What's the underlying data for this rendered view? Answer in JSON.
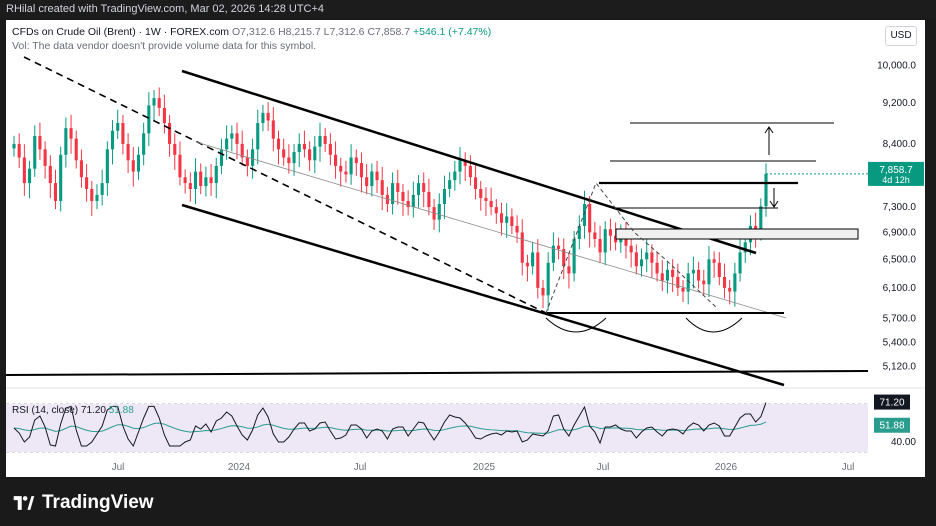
{
  "header": {
    "attribution": "RHilal created with TradingView.com, Mar 02, 2026 14:28 UTC+4"
  },
  "legend": {
    "symbol": "CFDs on Crude Oil (Brent) · 1W · FOREX.com",
    "open": "O7,312.6",
    "high": "H8,215.7",
    "low": "L7,312.6",
    "close": "C7,858.7",
    "change": "+546.1 (+7.47%)",
    "vol_note": "Vol: The data vendor doesn't provide volume data for this symbol."
  },
  "currency": "USD",
  "rsi": {
    "label": "RSI (14, close)",
    "value": "71.20",
    "ma_value": "51.88"
  },
  "last_price": {
    "price": "7,858.7",
    "countdown": "4d 12h"
  },
  "footer": {
    "brand": "TradingView"
  },
  "colors": {
    "up": "#089981",
    "down": "#f23645",
    "rsi_line": "#131722",
    "rsi_ma": "#2a9d8f",
    "rsi_band": "#ede7f6"
  },
  "chart_data": {
    "type": "candlestick",
    "price_axis_ticks": [
      "10,000.0",
      "9,200.0",
      "8,400.0",
      "7,300.0",
      "6,900.0",
      "6,500.0",
      "6,100.0",
      "5,700.0",
      "5,400.0",
      "5,120.0"
    ],
    "time_axis_ticks": [
      "Jul",
      "2024",
      "Jul",
      "2025",
      "Jul",
      "2026",
      "Jul"
    ],
    "rsi_axis_ticks": [
      "40.00"
    ],
    "scale": "log",
    "close_series": [
      8400,
      8150,
      7700,
      7950,
      8550,
      8300,
      8000,
      7700,
      7400,
      8200,
      8700,
      8500,
      8100,
      7800,
      7600,
      7400,
      7500,
      7700,
      8300,
      8650,
      8800,
      8400,
      8100,
      7900,
      8200,
      8600,
      9150,
      9300,
      9100,
      8800,
      8400,
      8200,
      7800,
      7700,
      7600,
      7900,
      7650,
      7800,
      7700,
      8000,
      8300,
      8500,
      8600,
      8400,
      8150,
      8000,
      8300,
      8800,
      9000,
      8850,
      8500,
      8300,
      8150,
      8050,
      8250,
      8400,
      8300,
      8100,
      8350,
      8550,
      8400,
      8200,
      8000,
      7900,
      7850,
      8150,
      8050,
      7800,
      7650,
      7900,
      7750,
      7500,
      7350,
      7700,
      7550,
      7400,
      7300,
      7500,
      7700,
      7550,
      7300,
      7100,
      7350,
      7600,
      7750,
      7900,
      8100,
      8000,
      7800,
      7600,
      7450,
      7400,
      7300,
      7200,
      7050,
      7150,
      7000,
      6900,
      6450,
      6400,
      6600,
      6100,
      6000,
      6450,
      6700,
      6650,
      6400,
      6300,
      6800,
      7000,
      7350,
      6900,
      6800,
      6600,
      6950,
      6850,
      6750,
      6900,
      6700,
      6600,
      6400,
      6500,
      6600,
      6450,
      6300,
      6200,
      6350,
      6250,
      6100,
      6050,
      6300,
      6350,
      6200,
      6150,
      6500,
      6450,
      6250,
      6100,
      6050,
      6300,
      6600,
      6750,
      7000,
      6900,
      7313,
      7859
    ]
  }
}
